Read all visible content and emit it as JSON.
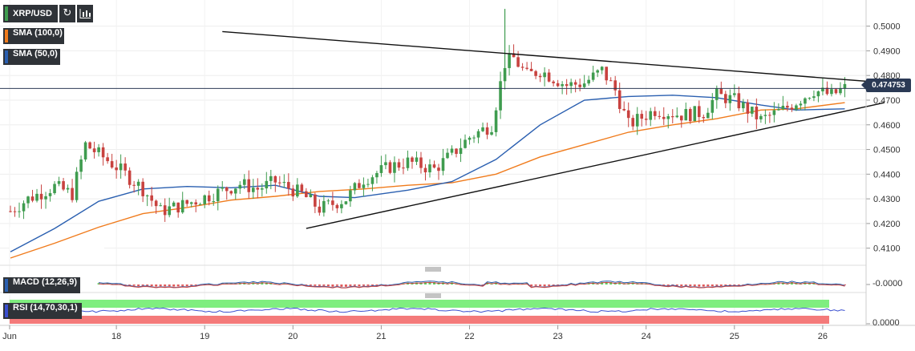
{
  "header": {
    "symbol": "XRP/USD",
    "refresh_icon": "refresh-icon",
    "bars_icon": "candle-bars-icon"
  },
  "indicators": {
    "sma100": {
      "label": "SMA (100,0)",
      "color": "#f07b1c"
    },
    "sma50": {
      "label": "SMA (50,0)",
      "color": "#2a5fb0"
    },
    "macd": {
      "label": "MACD (12,26,9)",
      "value": "-0.0000"
    },
    "rsi": {
      "label": "RSI (14,70,30,1)",
      "value": "0.0000"
    }
  },
  "price_tag": "0.474753",
  "colors": {
    "up": "#3f9c4f",
    "down": "#c8423f",
    "trendline": "#111111",
    "price_line": "#2b3a55",
    "rsi_line": "#3a4fd0",
    "rsi_overbought": "#7fee7f",
    "rsi_oversold": "#f47a7a"
  },
  "chart_data": {
    "type": "candlestick",
    "x_ticks": [
      "Jun",
      "18",
      "19",
      "20",
      "21",
      "22",
      "23",
      "24",
      "25",
      "26"
    ],
    "y_ticks": [
      "0.5000",
      "0.4900",
      "0.4800",
      "0.4700",
      "0.4600",
      "0.4500",
      "0.4400",
      "0.4300",
      "0.4200",
      "0.4100"
    ],
    "ylim": [
      0.406,
      0.508
    ],
    "current_price": 0.474753,
    "time_range": [
      17.0,
      26.8
    ],
    "candle_keypoints": [
      [
        17.0,
        0.425
      ],
      [
        17.2,
        0.43
      ],
      [
        17.5,
        0.435
      ],
      [
        17.7,
        0.432
      ],
      [
        17.85,
        0.452
      ],
      [
        18.2,
        0.443
      ],
      [
        18.5,
        0.434
      ],
      [
        18.7,
        0.425
      ],
      [
        19.0,
        0.428
      ],
      [
        19.3,
        0.432
      ],
      [
        19.6,
        0.436
      ],
      [
        19.8,
        0.434
      ],
      [
        20.0,
        0.437
      ],
      [
        20.3,
        0.432
      ],
      [
        20.5,
        0.426
      ],
      [
        20.8,
        0.43
      ],
      [
        21.0,
        0.438
      ],
      [
        21.3,
        0.443
      ],
      [
        21.5,
        0.445
      ],
      [
        21.8,
        0.442
      ],
      [
        22.0,
        0.448
      ],
      [
        22.2,
        0.455
      ],
      [
        22.45,
        0.46
      ],
      [
        22.6,
        0.485
      ],
      [
        22.7,
        0.487
      ],
      [
        22.85,
        0.48
      ],
      [
        23.0,
        0.482
      ],
      [
        23.3,
        0.476
      ],
      [
        23.5,
        0.477
      ],
      [
        23.7,
        0.482
      ],
      [
        23.85,
        0.474
      ],
      [
        24.0,
        0.46
      ],
      [
        24.3,
        0.466
      ],
      [
        24.6,
        0.464
      ],
      [
        24.85,
        0.465
      ],
      [
        25.0,
        0.472
      ],
      [
        25.2,
        0.47
      ],
      [
        25.5,
        0.462
      ],
      [
        25.75,
        0.466
      ],
      [
        26.1,
        0.474
      ],
      [
        26.3,
        0.472
      ],
      [
        26.45,
        0.4748
      ]
    ],
    "sma50": [
      [
        17.0,
        0.4085
      ],
      [
        17.5,
        0.418
      ],
      [
        18.0,
        0.429
      ],
      [
        18.5,
        0.434
      ],
      [
        19.0,
        0.435
      ],
      [
        19.5,
        0.4345
      ],
      [
        20.0,
        0.4355
      ],
      [
        20.5,
        0.431
      ],
      [
        20.9,
        0.4305
      ],
      [
        21.5,
        0.4335
      ],
      [
        22.0,
        0.437
      ],
      [
        22.5,
        0.446
      ],
      [
        23.0,
        0.46
      ],
      [
        23.5,
        0.47
      ],
      [
        24.0,
        0.4715
      ],
      [
        24.5,
        0.472
      ],
      [
        25.0,
        0.471
      ],
      [
        25.5,
        0.468
      ],
      [
        25.9,
        0.466
      ],
      [
        26.45,
        0.4665
      ]
    ],
    "sma100": [
      [
        17.0,
        0.406
      ],
      [
        17.5,
        0.412
      ],
      [
        18.0,
        0.4185
      ],
      [
        18.5,
        0.424
      ],
      [
        19.0,
        0.4265
      ],
      [
        19.5,
        0.4295
      ],
      [
        20.0,
        0.431
      ],
      [
        20.5,
        0.433
      ],
      [
        21.0,
        0.434
      ],
      [
        21.5,
        0.4355
      ],
      [
        22.0,
        0.4365
      ],
      [
        22.5,
        0.44
      ],
      [
        23.0,
        0.447
      ],
      [
        23.5,
        0.452
      ],
      [
        24.0,
        0.457
      ],
      [
        24.5,
        0.46
      ],
      [
        25.0,
        0.4625
      ],
      [
        25.5,
        0.466
      ],
      [
        25.9,
        0.4665
      ],
      [
        26.45,
        0.469
      ]
    ],
    "trendlines": [
      {
        "name": "upper",
        "from": [
          19.4,
          0.4978
        ],
        "to": [
          26.9,
          0.4771
        ]
      },
      {
        "name": "lower",
        "from": [
          20.35,
          0.418
        ],
        "to": [
          26.9,
          0.469
        ]
      }
    ]
  }
}
